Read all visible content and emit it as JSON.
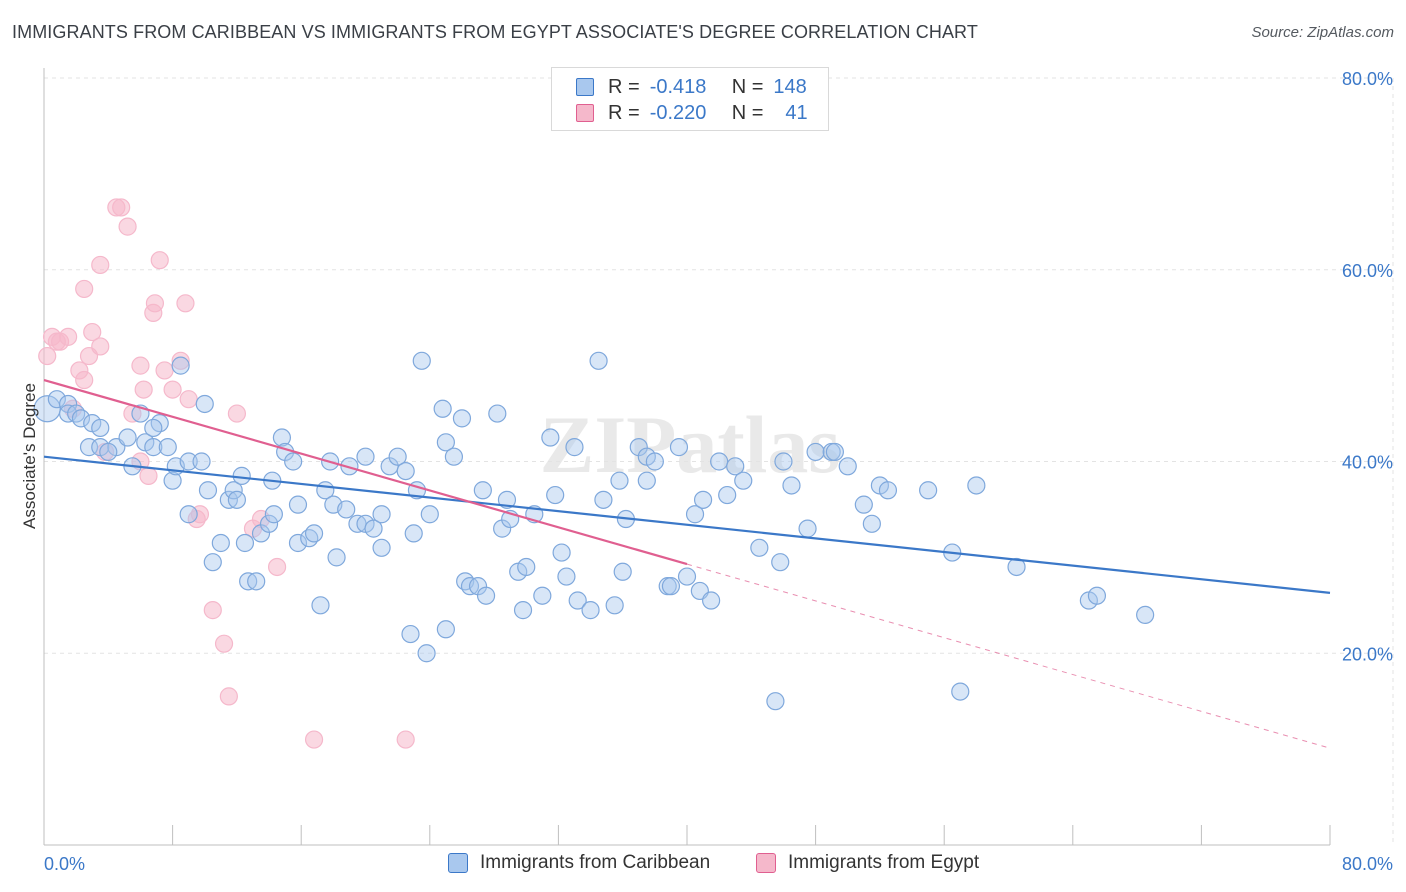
{
  "header": {
    "title": "IMMIGRANTS FROM CARIBBEAN VS IMMIGRANTS FROM EGYPT ASSOCIATE'S DEGREE CORRELATION CHART",
    "source": "Source: ZipAtlas.com"
  },
  "watermark": "ZIPatlas",
  "legend": {
    "rows": [
      {
        "r_label": "R =",
        "r_value": "-0.418",
        "n_label": "N =",
        "n_value": "148"
      },
      {
        "r_label": "R =",
        "r_value": "-0.220",
        "n_label": "N =",
        "n_value": "41"
      }
    ]
  },
  "bottom_legend": {
    "caribbean": "Immigrants from Caribbean",
    "egypt": "Immigrants from Egypt"
  },
  "colors": {
    "blue": "#3b78c8",
    "blue_fill": "#a9c8ee",
    "pink": "#e05f90",
    "pink_fill": "#f5b8cb",
    "grid": "#e3e3e3"
  },
  "chart_data": {
    "type": "scatter",
    "title": "IMMIGRANTS FROM CARIBBEAN VS IMMIGRANTS FROM EGYPT ASSOCIATE'S DEGREE CORRELATION CHART",
    "xlabel": "",
    "ylabel": "Associate's Degree",
    "xlim": [
      0,
      80
    ],
    "ylim": [
      0,
      80
    ],
    "x_tick_labels": [
      "0.0%",
      "80.0%"
    ],
    "y_ticks": [
      20,
      40,
      60,
      80
    ],
    "y_tick_labels": [
      "20.0%",
      "40.0%",
      "60.0%",
      "80.0%"
    ],
    "grid": true,
    "legend_position": "top-center",
    "series": [
      {
        "name": "Immigrants from Caribbean",
        "color": "#3b78c8",
        "r": -0.418,
        "n": 148,
        "trend": {
          "x": [
            0,
            80
          ],
          "y": [
            40.5,
            26.3
          ]
        },
        "points": [
          [
            0.2,
            45.5
          ],
          [
            0.8,
            46.5
          ],
          [
            1.5,
            46
          ],
          [
            1.5,
            45
          ],
          [
            2,
            45
          ],
          [
            2.3,
            44.5
          ],
          [
            3,
            44
          ],
          [
            3.5,
            43.5
          ],
          [
            2.8,
            41.5
          ],
          [
            3.5,
            41.5
          ],
          [
            4.5,
            41.5
          ],
          [
            4,
            41
          ],
          [
            5.2,
            42.5
          ],
          [
            5.5,
            39.5
          ],
          [
            6,
            45
          ],
          [
            6.3,
            42
          ],
          [
            6.8,
            41.5
          ],
          [
            7.2,
            44
          ],
          [
            6.8,
            43.5
          ],
          [
            7.7,
            41.5
          ],
          [
            8,
            38
          ],
          [
            8.2,
            39.5
          ],
          [
            8.5,
            50
          ],
          [
            9,
            40
          ],
          [
            9,
            34.5
          ],
          [
            9.8,
            40
          ],
          [
            10,
            46
          ],
          [
            10.2,
            37
          ],
          [
            10.5,
            29.5
          ],
          [
            11,
            31.5
          ],
          [
            11.5,
            36
          ],
          [
            11.8,
            37
          ],
          [
            12,
            36
          ],
          [
            12.3,
            38.5
          ],
          [
            12.5,
            31.5
          ],
          [
            12.7,
            27.5
          ],
          [
            13.2,
            27.5
          ],
          [
            13.5,
            32.5
          ],
          [
            14,
            33.5
          ],
          [
            14.2,
            38
          ],
          [
            14.3,
            34.5
          ],
          [
            14.8,
            42.5
          ],
          [
            15,
            41
          ],
          [
            15.5,
            40
          ],
          [
            15.8,
            35.5
          ],
          [
            15.8,
            31.5
          ],
          [
            16.5,
            32
          ],
          [
            16.8,
            32.5
          ],
          [
            17.2,
            25
          ],
          [
            17.5,
            37
          ],
          [
            17.8,
            40
          ],
          [
            18,
            35.5
          ],
          [
            18.2,
            30
          ],
          [
            18.8,
            35
          ],
          [
            19,
            39.5
          ],
          [
            19.5,
            33.5
          ],
          [
            20,
            40.5
          ],
          [
            20,
            33.5
          ],
          [
            20.5,
            33
          ],
          [
            21,
            31
          ],
          [
            21,
            34.5
          ],
          [
            21.5,
            39.5
          ],
          [
            22,
            40.5
          ],
          [
            22.5,
            39
          ],
          [
            22.8,
            22
          ],
          [
            23,
            32.5
          ],
          [
            23.2,
            37
          ],
          [
            23.5,
            50.5
          ],
          [
            23.8,
            20
          ],
          [
            24,
            34.5
          ],
          [
            24.8,
            45.5
          ],
          [
            25,
            42
          ],
          [
            25,
            22.5
          ],
          [
            25.5,
            40.5
          ],
          [
            26,
            44.5
          ],
          [
            26.2,
            27.5
          ],
          [
            26.5,
            27
          ],
          [
            27,
            27
          ],
          [
            27.3,
            37
          ],
          [
            27.5,
            26
          ],
          [
            28.2,
            45
          ],
          [
            28.5,
            33
          ],
          [
            28.8,
            36
          ],
          [
            29,
            34
          ],
          [
            29.5,
            28.5
          ],
          [
            29.8,
            24.5
          ],
          [
            30,
            29
          ],
          [
            30.5,
            34.5
          ],
          [
            31,
            26
          ],
          [
            31.5,
            42.5
          ],
          [
            31.8,
            36.5
          ],
          [
            32.2,
            30.5
          ],
          [
            32.5,
            28
          ],
          [
            33,
            41.5
          ],
          [
            33.2,
            25.5
          ],
          [
            34,
            24.5
          ],
          [
            34.5,
            50.5
          ],
          [
            34.8,
            36
          ],
          [
            35.5,
            25
          ],
          [
            35.8,
            38
          ],
          [
            36,
            28.5
          ],
          [
            36.2,
            34
          ],
          [
            37,
            41.5
          ],
          [
            37.5,
            38
          ],
          [
            37.5,
            40.5
          ],
          [
            38,
            40
          ],
          [
            38.8,
            27
          ],
          [
            39,
            27
          ],
          [
            39.5,
            41.5
          ],
          [
            40,
            28
          ],
          [
            40.5,
            34.5
          ],
          [
            40.8,
            26.5
          ],
          [
            41,
            36
          ],
          [
            41.5,
            25.5
          ],
          [
            42,
            40
          ],
          [
            42.5,
            36.5
          ],
          [
            43,
            39.5
          ],
          [
            43.5,
            38
          ],
          [
            44.5,
            31
          ],
          [
            46,
            40
          ],
          [
            45.8,
            29.5
          ],
          [
            45.5,
            15
          ],
          [
            46.5,
            37.5
          ],
          [
            47.5,
            33
          ],
          [
            48,
            41
          ],
          [
            49,
            41
          ],
          [
            49.2,
            41
          ],
          [
            50,
            39.5
          ],
          [
            51,
            35.5
          ],
          [
            51.5,
            33.5
          ],
          [
            52,
            37.5
          ],
          [
            52.5,
            37
          ],
          [
            55,
            37
          ],
          [
            56.5,
            30.5
          ],
          [
            57,
            16
          ],
          [
            58,
            37.5
          ],
          [
            60.5,
            29
          ],
          [
            65,
            25.5
          ],
          [
            65.5,
            26
          ],
          [
            68.5,
            24
          ]
        ]
      },
      {
        "name": "Immigrants from Egypt",
        "color": "#e05f90",
        "r": -0.22,
        "n": 41,
        "trend": {
          "x": [
            0,
            40
          ],
          "y": [
            48.5,
            29.3
          ]
        },
        "trend_dashed": {
          "x": [
            40,
            80
          ],
          "y": [
            29.3,
            10.1
          ]
        },
        "points": [
          [
            0.2,
            51
          ],
          [
            0.5,
            53
          ],
          [
            0.8,
            52.5
          ],
          [
            1,
            52.5
          ],
          [
            1.5,
            53
          ],
          [
            1.8,
            45.5
          ],
          [
            2.2,
            49.5
          ],
          [
            2.5,
            48.5
          ],
          [
            2.8,
            51
          ],
          [
            3,
            53.5
          ],
          [
            3.5,
            52
          ],
          [
            3.8,
            41
          ],
          [
            2.5,
            58
          ],
          [
            3.5,
            60.5
          ],
          [
            4.5,
            66.5
          ],
          [
            4.8,
            66.5
          ],
          [
            5.2,
            64.5
          ],
          [
            5.5,
            45
          ],
          [
            6,
            40
          ],
          [
            6,
            50
          ],
          [
            6.2,
            47.5
          ],
          [
            6.5,
            38.5
          ],
          [
            6.8,
            55.5
          ],
          [
            6.9,
            56.5
          ],
          [
            7.2,
            61
          ],
          [
            7.5,
            49.5
          ],
          [
            8,
            47.5
          ],
          [
            8.5,
            50.5
          ],
          [
            8.8,
            56.5
          ],
          [
            9,
            46.5
          ],
          [
            9.5,
            34
          ],
          [
            9.7,
            34.5
          ],
          [
            10.5,
            24.5
          ],
          [
            11.2,
            21
          ],
          [
            11.5,
            15.5
          ],
          [
            12,
            45
          ],
          [
            13,
            33
          ],
          [
            13.5,
            34
          ],
          [
            14.5,
            29
          ],
          [
            16.8,
            11
          ],
          [
            22.5,
            11
          ]
        ]
      }
    ]
  }
}
